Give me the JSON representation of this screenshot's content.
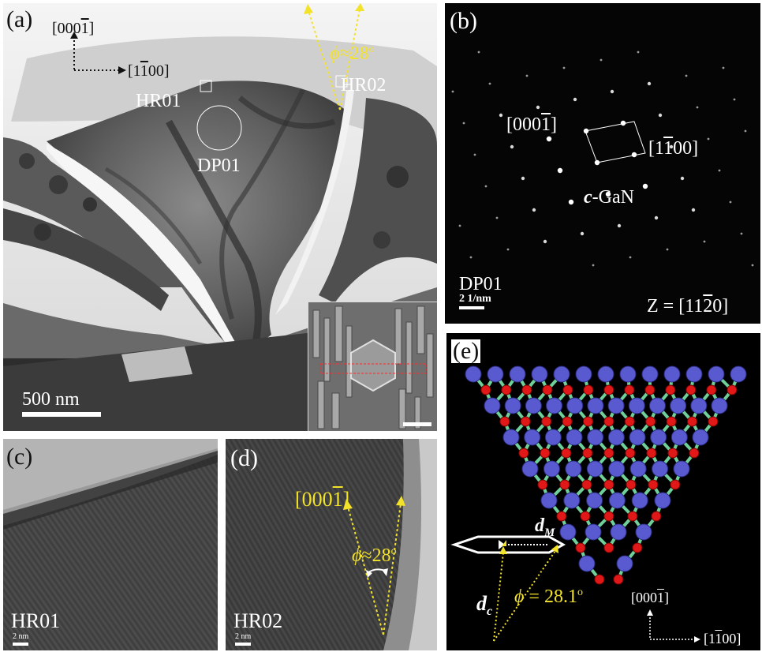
{
  "panel_a": {
    "letter": "(a)",
    "axis_vertical": "[000",
    "axis_vertical_bar": "1",
    "axis_vertical_close": "]",
    "axis_horizontal_pre": "[1",
    "axis_horizontal_bar": "1",
    "axis_horizontal_post": "00]",
    "angle_symbol": "ϕ",
    "angle_text": "≈28",
    "angle_degree": "o",
    "region_hr01": "HR01",
    "region_hr02": "HR02",
    "region_dp01": "DP01",
    "scale_text": "500 nm"
  },
  "panel_b": {
    "letter": "(b)",
    "dir_a_pre": "[000",
    "dir_a_bar": "1",
    "dir_a_close": "]",
    "dir_b_pre": "[1",
    "dir_b_bar": "1",
    "dir_b_post": "00]",
    "phase_prefix": "c",
    "phase_rest": "-GaN",
    "pattern_label": "DP01",
    "scale_text": "2 1/nm",
    "zone_pre": "Z = [11",
    "zone_bar": "2",
    "zone_post": "0]"
  },
  "panel_c": {
    "letter": "(c)",
    "region": "HR01",
    "scale_text": "2 nm"
  },
  "panel_d": {
    "letter": "(d)",
    "dir_pre": "[000",
    "dir_bar": "1",
    "dir_close": "]",
    "angle_symbol": "ϕ",
    "angle_text": "≈28",
    "angle_degree": "o",
    "region": "HR02",
    "scale_text": "2 nm"
  },
  "panel_e": {
    "letter": "(e)",
    "dm_base": "d",
    "dm_sub": "M",
    "dc_base": "d",
    "dc_sub": "c",
    "angle_symbol": "ϕ",
    "angle_text": " =  28.1",
    "angle_degree": "o",
    "axis_vertical_pre": "[000",
    "axis_vertical_bar": "1",
    "axis_vertical_close": "]",
    "axis_horizontal_pre": "[1",
    "axis_horizontal_bar": "1",
    "axis_horizontal_post": "00]"
  },
  "colors": {
    "annotation_yellow": "#f3e22a",
    "atom_blue": "#5a5ad0",
    "atom_red": "#e01818",
    "bond_green": "#6fd09a"
  }
}
